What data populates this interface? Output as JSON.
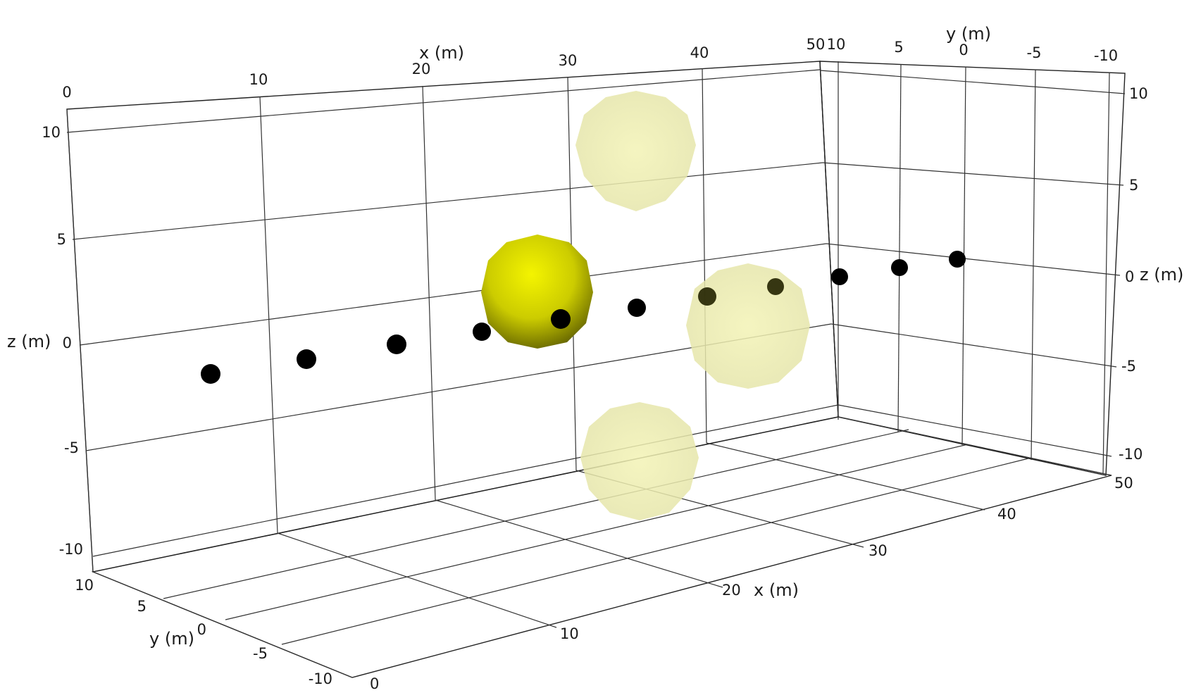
{
  "axes": {
    "x": {
      "title": "x (m)",
      "ticks": [
        "0",
        "10",
        "20",
        "30",
        "40",
        "50"
      ]
    },
    "y": {
      "title": "y (m)",
      "ticks": [
        "10",
        "5",
        "0",
        "-5",
        "-10"
      ]
    },
    "z": {
      "title": "z (m)",
      "ticks": [
        "10",
        "5",
        "0",
        "-5",
        "-10"
      ]
    }
  },
  "colors": {
    "background": "#ffffff",
    "grid": "#333333",
    "sensor": "#000000",
    "source_solid": "#e6e600",
    "source_ghost": "#eded9a"
  },
  "sensors": {
    "count": 11
  },
  "sources": [
    {
      "kind": "solid",
      "label": ""
    },
    {
      "kind": "translucent",
      "label": ""
    },
    {
      "kind": "translucent",
      "label": ""
    },
    {
      "kind": "translucent",
      "label": ""
    }
  ]
}
